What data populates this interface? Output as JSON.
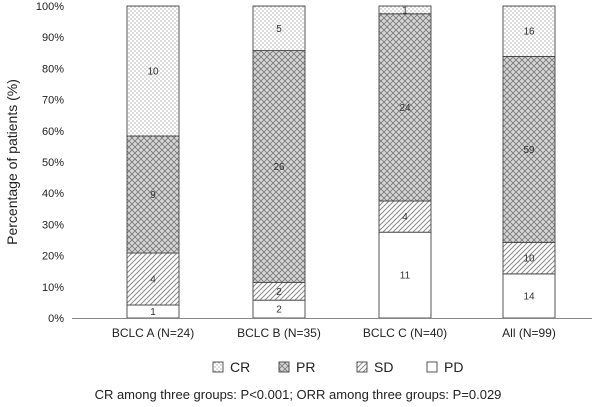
{
  "chart_data": {
    "type": "bar",
    "stacked": true,
    "normalized": true,
    "categories": [
      "BCLC A (N=24)",
      "BCLC B (N=35)",
      "BCLC C (N=40)",
      "All (N=99)"
    ],
    "series": [
      {
        "name": "PD",
        "values": [
          1,
          2,
          11,
          14
        ]
      },
      {
        "name": "SD",
        "values": [
          4,
          2,
          4,
          10
        ]
      },
      {
        "name": "PR",
        "values": [
          9,
          26,
          24,
          59
        ]
      },
      {
        "name": "CR",
        "values": [
          10,
          5,
          1,
          16
        ]
      }
    ],
    "legend_order": [
      "CR",
      "PR",
      "SD",
      "PD"
    ],
    "ylabel": "Percentage of patients (%)",
    "ylim": [
      0,
      100
    ],
    "yticks": [
      "0%",
      "10%",
      "20%",
      "30%",
      "40%",
      "50%",
      "60%",
      "70%",
      "80%",
      "90%",
      "100%"
    ],
    "grid": false,
    "legend_position": "bottom",
    "footnote": "CR among three groups: P<0.001; ORR among three groups: P=0.029",
    "fills": {
      "CR": "dots",
      "PR": "crosshatch",
      "SD": "diagonal",
      "PD": "white"
    }
  }
}
